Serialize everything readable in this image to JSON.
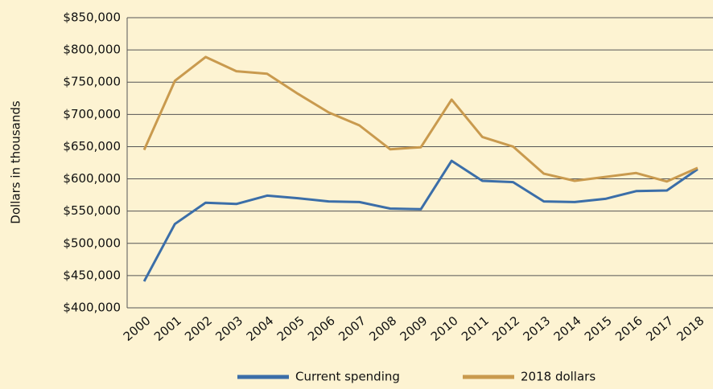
{
  "chart_data": {
    "type": "line",
    "y_label": "Dollars in thousands",
    "categories": [
      "2000",
      "2001",
      "2002",
      "2003",
      "2004",
      "2005",
      "2006",
      "2007",
      "2008",
      "2009",
      "2010",
      "2011",
      "2012",
      "2013",
      "2014",
      "2015",
      "2016",
      "2017",
      "2018"
    ],
    "series": [
      {
        "name": "Current spending",
        "color": "#3b6ea8",
        "values": [
          441000,
          530000,
          563000,
          561000,
          574000,
          570000,
          565000,
          564000,
          554000,
          553000,
          628000,
          597000,
          595000,
          565000,
          564000,
          569000,
          581000,
          582000,
          615000
        ]
      },
      {
        "name": "2018 dollars",
        "color": "#c99a4e",
        "values": [
          645000,
          752000,
          789000,
          767000,
          763000,
          732000,
          703000,
          683000,
          646000,
          649000,
          723000,
          665000,
          650000,
          608000,
          597000,
          603000,
          609000,
          596000,
          617000
        ]
      }
    ],
    "ylim": [
      400000,
      850000
    ],
    "yticks": [
      {
        "value": 400000,
        "label": "$400,000"
      },
      {
        "value": 450000,
        "label": "$450,000"
      },
      {
        "value": 500000,
        "label": "$500,000"
      },
      {
        "value": 550000,
        "label": "$550,000"
      },
      {
        "value": 600000,
        "label": "$600,000"
      },
      {
        "value": 650000,
        "label": "$650,000"
      },
      {
        "value": 700000,
        "label": "$700,000"
      },
      {
        "value": 750000,
        "label": "$750,000"
      },
      {
        "value": 800000,
        "label": "$800,000"
      },
      {
        "value": 850000,
        "label": "$850,000"
      }
    ],
    "grid": true,
    "legend": "bottom"
  }
}
